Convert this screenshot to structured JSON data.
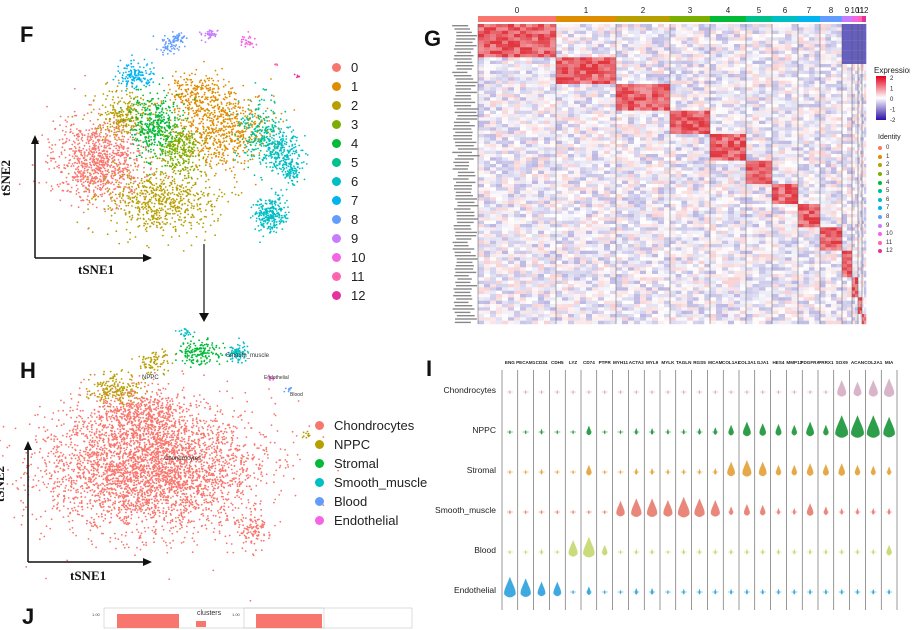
{
  "panels": {
    "F": "F",
    "G": "G",
    "H": "H",
    "I": "I",
    "J": "J"
  },
  "tsne_axes": {
    "x": "tSNE1",
    "y": "tSNE2"
  },
  "panel_f_clusters": [
    "0",
    "1",
    "2",
    "3",
    "4",
    "5",
    "6",
    "7",
    "8",
    "9",
    "10",
    "11",
    "12"
  ],
  "cluster_colors": [
    "#F8766D",
    "#DE8C00",
    "#B79F00",
    "#7CAE00",
    "#00BA38",
    "#00C08B",
    "#00BFC4",
    "#00B4F0",
    "#619CFF",
    "#C77CFF",
    "#F564E3",
    "#FF64B0",
    "#E7309F"
  ],
  "panel_h_cell_types": [
    "Chondrocytes",
    "NPPC",
    "Stromal",
    "Smooth_muscle",
    "Blood",
    "Endothelial"
  ],
  "cell_type_colors": [
    "#F8766D",
    "#B79F00",
    "#00BA38",
    "#00BFC4",
    "#619CFF",
    "#F564E3"
  ],
  "panel_h_labels": {
    "chondro": "Chondrocytes",
    "npp": "NPPC",
    "smooth": "Smooth_muscle",
    "endo": "Endothelial",
    "blood": "Blood"
  },
  "heatmap": {
    "top_labels": [
      "0",
      "1",
      "2",
      "3",
      "4",
      "5",
      "6",
      "7",
      "8",
      "9",
      "10",
      "11",
      "12"
    ],
    "legend_title": "Expression",
    "scale_ticks": [
      "2",
      "1",
      "0",
      "-1",
      "-2"
    ],
    "identity_title": "Identity",
    "identity_items": [
      "0",
      "1",
      "2",
      "3",
      "4",
      "5",
      "6",
      "7",
      "8",
      "9",
      "10",
      "11",
      "12"
    ]
  },
  "violin": {
    "genes": [
      "ENG",
      "PECAM1",
      "CD34",
      "CDH5",
      "LYZ",
      "CD74",
      "PTPR",
      "MYH11",
      "ACTA2",
      "MYL9",
      "MYLK",
      "TAGLN",
      "RGS5",
      "MCAM",
      "COL1A1",
      "COL3A1",
      "GJA1",
      "HES4",
      "MMP13",
      "PDGFRA",
      "PRRX1",
      "SOX9",
      "ACAN",
      "COL2A1",
      "MIA"
    ],
    "rows": [
      "Chondrocytes",
      "NPPC",
      "Stromal",
      "Smooth_muscle",
      "Blood",
      "Endothelial"
    ],
    "row_colors": [
      "#D9B5C9",
      "#2E9E4A",
      "#E6A94A",
      "#E8877A",
      "#C9DB7A",
      "#3FA9E0"
    ]
  },
  "panel_j": {
    "legend_title": "clusters",
    "tick": "1.00"
  }
}
